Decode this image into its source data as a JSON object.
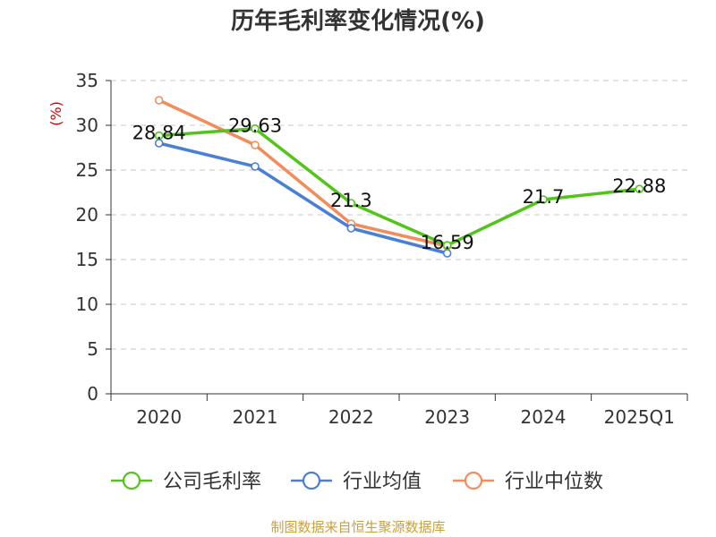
{
  "chart_data": {
    "type": "line",
    "title": "历年毛利率变化情况(%)",
    "ylabel": "(%)",
    "xlabel": "",
    "categories": [
      "2020",
      "2021",
      "2022",
      "2023",
      "2024",
      "2025Q1"
    ],
    "ylim": [
      0,
      35
    ],
    "yticks": [
      0,
      5,
      10,
      15,
      20,
      25,
      30,
      35
    ],
    "grid": true,
    "legend_position": "bottom",
    "series": [
      {
        "name": "公司毛利率",
        "color": "#52c41a",
        "values": [
          28.84,
          29.63,
          21.3,
          16.59,
          21.7,
          22.88
        ],
        "labels": [
          "28.84",
          "29.63",
          "21.3",
          "16.59",
          "21.7",
          "22.88"
        ]
      },
      {
        "name": "行业均值",
        "color": "#4a7fd4",
        "values": [
          28.0,
          25.4,
          18.5,
          15.7,
          null,
          null
        ]
      },
      {
        "name": "行业中位数",
        "color": "#f28c5a",
        "values": [
          32.8,
          27.8,
          19.0,
          16.5,
          null,
          null
        ]
      }
    ],
    "source": "制图数据来自恒生聚源数据库",
    "source_color": "#c8a040",
    "ylabel_color": "#cc0000",
    "grid_color": "#c8c8c8"
  }
}
